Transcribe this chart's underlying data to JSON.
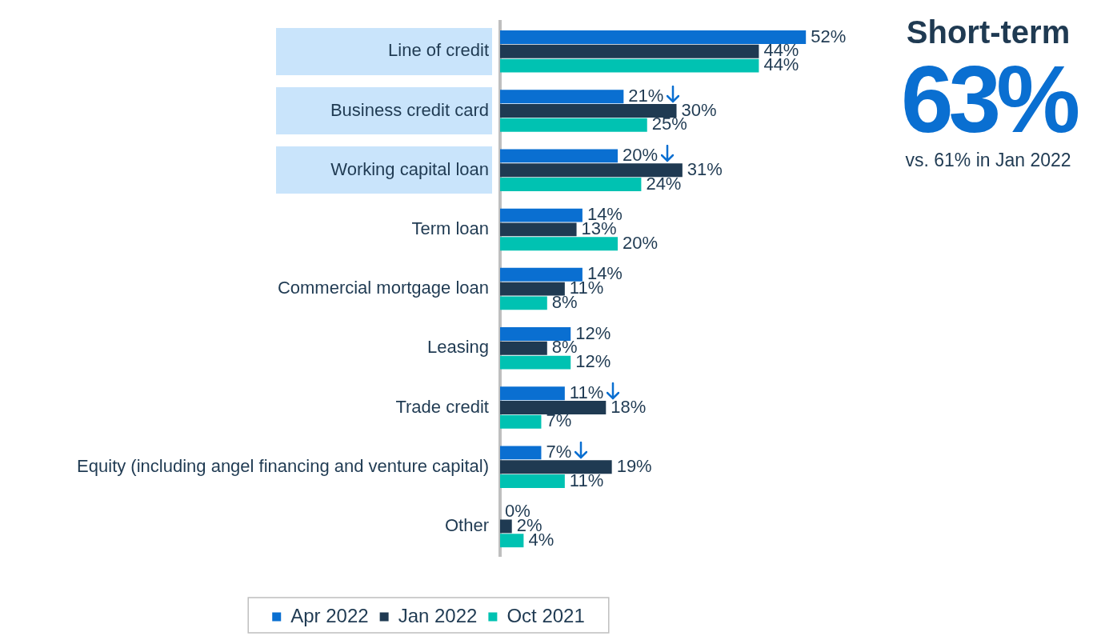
{
  "chart_data": {
    "type": "bar",
    "orientation": "horizontal",
    "categories": [
      "Line of credit",
      "Business credit card",
      "Working capital loan",
      "Term loan",
      "Commercial mortgage loan",
      "Leasing",
      "Trade credit",
      "Equity (including angel financing and venture capital)",
      "Other"
    ],
    "series": [
      {
        "name": "Apr 2022",
        "color": "#0a6fd1",
        "values": [
          52,
          21,
          20,
          14,
          14,
          12,
          11,
          7,
          0
        ],
        "value_labels": [
          "52%",
          "21%",
          "20%",
          "14%",
          "14%",
          "12%",
          "11%",
          "7%",
          "0%"
        ]
      },
      {
        "name": "Jan 2022",
        "color": "#1f3a52",
        "values": [
          44,
          30,
          31,
          13,
          11,
          8,
          18,
          19,
          2
        ],
        "value_labels": [
          "44%",
          "30%",
          "31%",
          "13%",
          "11%",
          "8%",
          "18%",
          "19%",
          "2%"
        ]
      },
      {
        "name": "Oct 2021",
        "color": "#00c2b2",
        "values": [
          44,
          25,
          24,
          20,
          8,
          12,
          7,
          11,
          4
        ],
        "value_labels": [
          "44%",
          "25%",
          "24%",
          "20%",
          "8%",
          "12%",
          "7%",
          "11%",
          "4%"
        ]
      }
    ],
    "tick_labels": "y",
    "grid": false,
    "legend": "bottom",
    "annotations": [
      "Short-term",
      "63%",
      "vs. 61% in Jan 2022"
    ]
  }
}
